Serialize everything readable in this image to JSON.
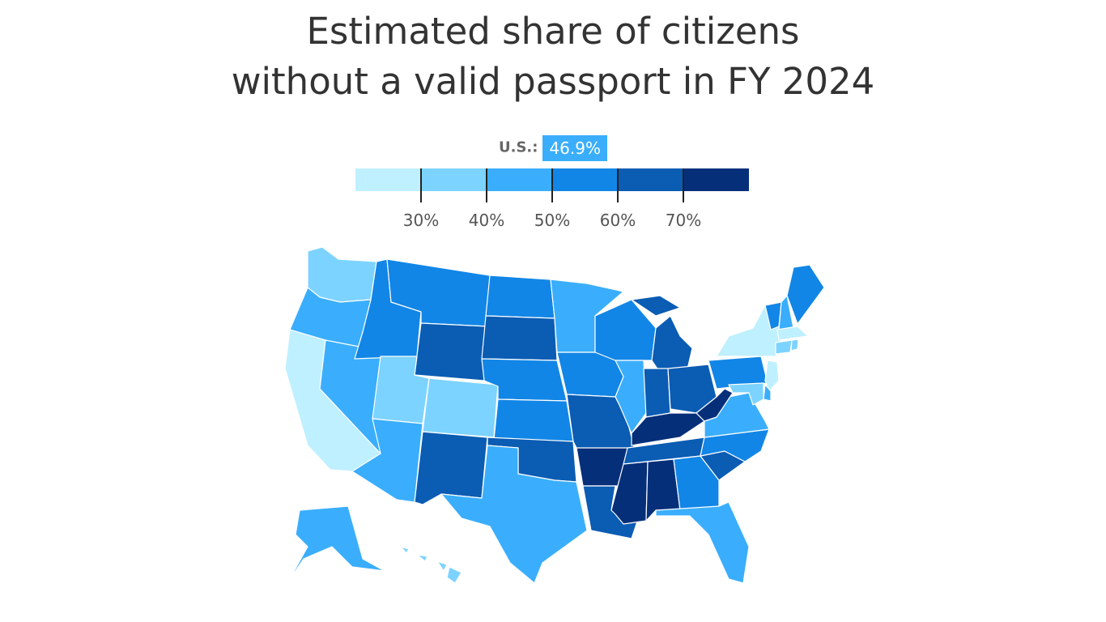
{
  "title": {
    "line1": "Estimated share of citizens",
    "line2": "without a valid passport in FY 2024"
  },
  "us_average": {
    "label": "U.S.:",
    "value": "46.9%"
  },
  "legend": {
    "colors": [
      "#bff0ff",
      "#7dd3ff",
      "#3aaefc",
      "#1286e6",
      "#0b5cb3",
      "#062f7a"
    ],
    "ticks": [
      "30%",
      "40%",
      "50%",
      "60%",
      "70%"
    ],
    "tick_values": [
      30,
      40,
      50,
      60,
      70
    ],
    "domain": [
      20,
      80
    ]
  },
  "chart_data": {
    "type": "choropleth",
    "title": "Estimated share of citizens without a valid passport in FY 2024",
    "value_bins": [
      {
        "range": "<30%",
        "color": "#bff0ff"
      },
      {
        "range": "30-40%",
        "color": "#7dd3ff"
      },
      {
        "range": "40-50%",
        "color": "#3aaefc"
      },
      {
        "range": "50-60%",
        "color": "#1286e6"
      },
      {
        "range": "60-70%",
        "color": "#0b5cb3"
      },
      {
        "range": ">70%",
        "color": "#062f7a"
      }
    ],
    "states": {
      "WA": 1,
      "OR": 2,
      "CA": 0,
      "NV": 2,
      "ID": 3,
      "MT": 3,
      "WY": 4,
      "UT": 1,
      "CO": 1,
      "AZ": 2,
      "NM": 4,
      "ND": 3,
      "SD": 4,
      "NE": 3,
      "KS": 3,
      "OK": 4,
      "TX": 2,
      "MN": 2,
      "IA": 3,
      "MO": 4,
      "AR": 5,
      "LA": 4,
      "WI": 3,
      "IL": 2,
      "MI": 4,
      "IN": 4,
      "OH": 4,
      "KY": 5,
      "TN": 4,
      "MS": 5,
      "AL": 5,
      "GA": 3,
      "FL": 2,
      "SC": 4,
      "NC": 3,
      "VA": 2,
      "WV": 5,
      "PA": 3,
      "NY": 0,
      "VT": 3,
      "NH": 2,
      "ME": 3,
      "MA": 0,
      "RI": 1,
      "CT": 1,
      "NJ": 0,
      "DE": 2,
      "MD": 1,
      "AK": 2,
      "HI": 1
    }
  }
}
